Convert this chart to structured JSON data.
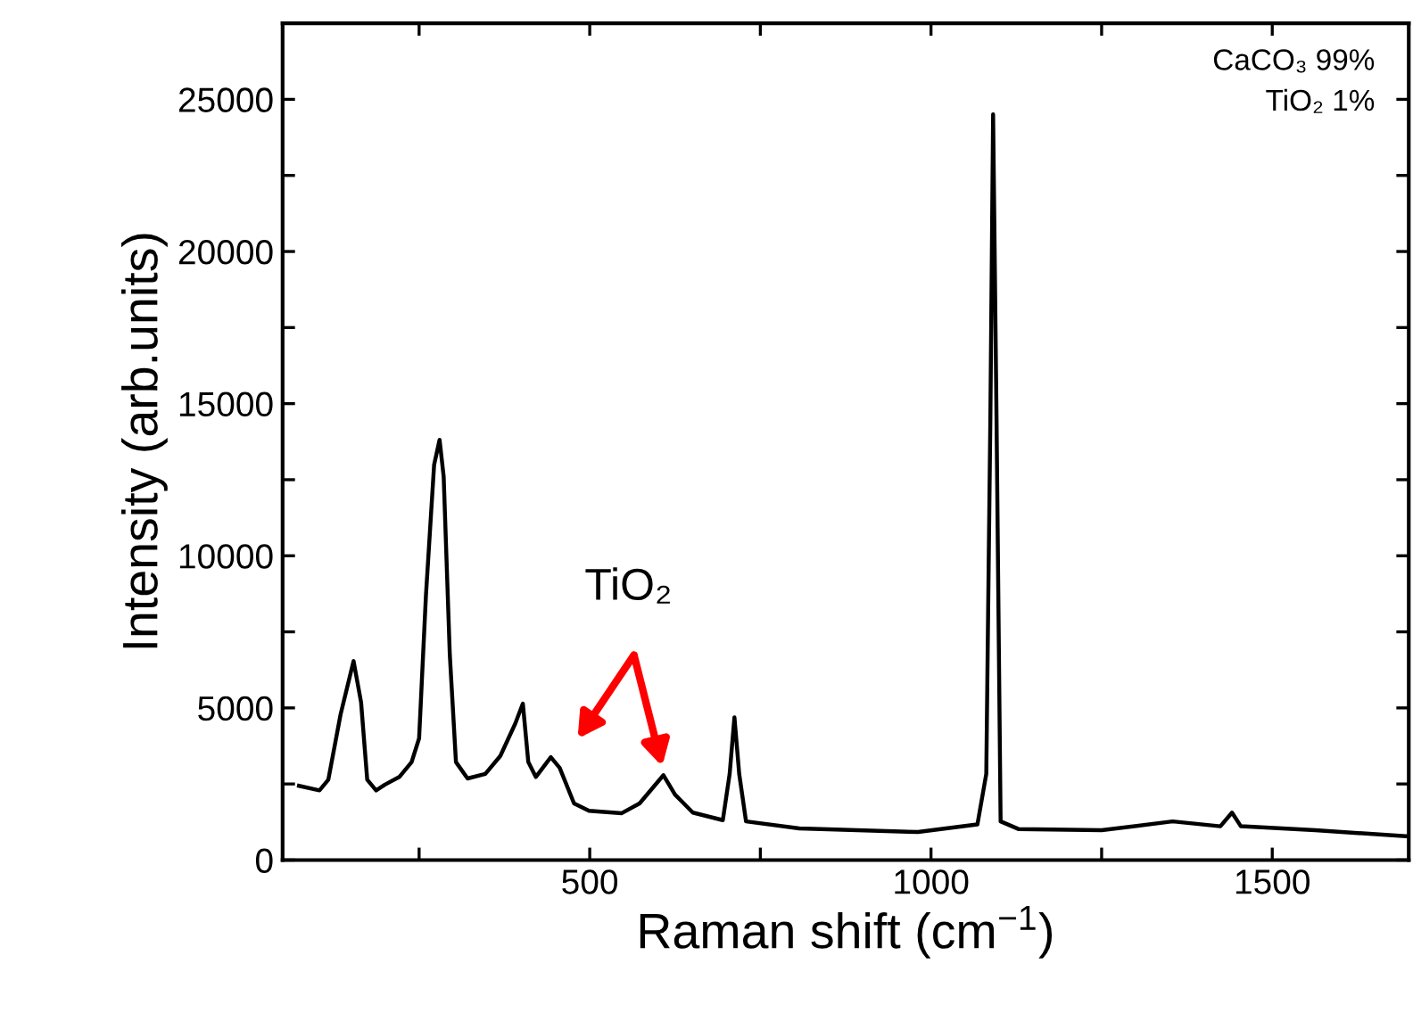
{
  "chart_data": {
    "type": "line",
    "xlabel": "Raman shift (cm$^{−1}$)",
    "ylabel": "Intensity (arb.units)",
    "xlim": [
      50,
      1700
    ],
    "xticks": [
      {
        "value": 250,
        "label": null
      },
      500,
      {
        "value": 750,
        "label": null
      },
      1000,
      {
        "value": 1250,
        "label": null
      },
      1500
    ],
    "ylim": [
      0,
      27500
    ],
    "yticks": [
      0,
      {
        "value": 2500,
        "label": null
      },
      5000,
      {
        "value": 7500,
        "label": null
      },
      10000,
      {
        "value": 12500,
        "label": null
      },
      15000,
      {
        "value": 17500,
        "label": null
      },
      20000,
      {
        "value": 22500,
        "label": null
      },
      25000,
      {
        "value": 27500,
        "label": null
      }
    ],
    "grid": false,
    "line_style": "solid",
    "marker": "none",
    "annotations": [
      "TiO₂",
      "CaCO₃ 99%\nTiO₂ 1%"
    ],
    "series": [
      {
        "color": "#000000",
        "x": [
          74,
          104,
          117,
          135,
          154,
          165,
          174,
          187,
          200,
          221,
          239,
          250,
          260,
          272,
          280,
          286,
          295,
          304,
          321,
          347,
          369,
          391,
          402,
          410,
          421,
          443,
          456,
          477,
          499,
          547,
          573,
          608,
          625,
          651,
          695,
          705,
          712,
          719,
          729,
          807,
          981,
          1068,
          1081,
          1087,
          1091,
          1096,
          1102,
          1128,
          1250,
          1354,
          1424,
          1441,
          1454,
          1563,
          1698
        ],
        "values": [
          2440,
          2290,
          2640,
          4790,
          6540,
          5180,
          2640,
          2290,
          2480,
          2730,
          3220,
          4000,
          8690,
          12990,
          13810,
          12600,
          6740,
          3220,
          2680,
          2830,
          3420,
          4490,
          5140,
          3220,
          2730,
          3380,
          3030,
          1860,
          1620,
          1540,
          1860,
          2790,
          2150,
          1560,
          1310,
          2830,
          4690,
          2830,
          1270,
          1040,
          920,
          1170,
          2830,
          14550,
          24510,
          14550,
          1270,
          1020,
          980,
          1270,
          1110,
          1560,
          1110,
          980,
          780
        ]
      }
    ]
  }
}
